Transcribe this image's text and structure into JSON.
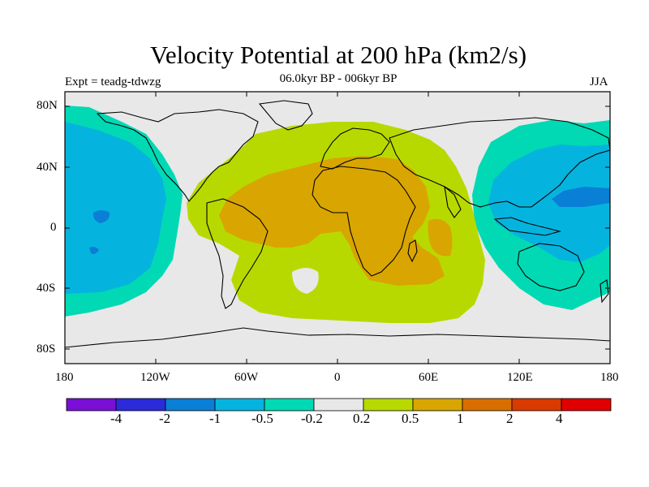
{
  "title": "Velocity Potential at 200 hPa (km2/s)",
  "experiment": "Expt = teadg-tdwzg",
  "subtitle": "06.0kyr BP - 006kyr BP",
  "season": "JJA",
  "y_axis": {
    "ticks": [
      "80N",
      "40N",
      "0",
      "40S",
      "80S"
    ]
  },
  "x_axis": {
    "ticks": [
      "180",
      "120W",
      "60W",
      "0",
      "60E",
      "120E",
      "180"
    ]
  },
  "colorbar": {
    "colors": [
      "#7a0fd6",
      "#2b2bd9",
      "#0a7fd6",
      "#05b4de",
      "#00d9b4",
      "#e8e8e8",
      "#b8d900",
      "#d9a500",
      "#d96e00",
      "#d93a00",
      "#e00000"
    ],
    "labels": [
      "-4",
      "-2",
      "-1",
      "-0.5",
      "-0.2",
      "0.2",
      "0.5",
      "1",
      "2",
      "4"
    ]
  },
  "legend_colors": {
    "neutral": "#e8e8e8",
    "light_positive": "#b8d900",
    "positive": "#d9a500",
    "light_negative": "#00d9b4",
    "negative": "#05b4de",
    "strong_negative": "#0a7fd6"
  }
}
